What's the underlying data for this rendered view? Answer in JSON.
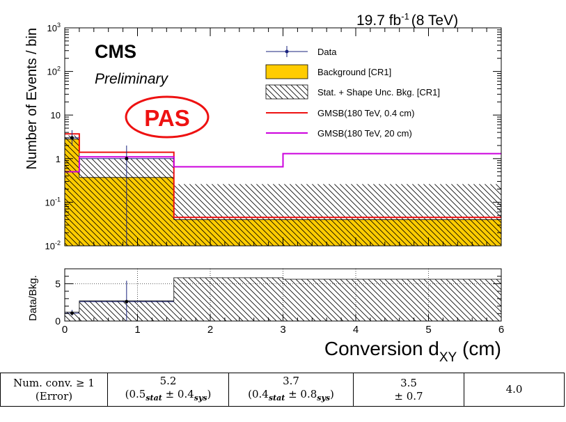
{
  "header": {
    "lumi": "19.7 fb",
    "lumi_exp": "-1",
    "energy": "(8 TeV)",
    "experiment": "CMS",
    "status": "Preliminary",
    "stamp": "PAS"
  },
  "chart_data": [
    {
      "type": "histogram",
      "yscale": "log",
      "ylabel": "Number of Events / bin",
      "xlim": [
        0,
        6
      ],
      "ylim": [
        0.01,
        1000
      ],
      "y_ticks": [
        "10^-2",
        "10^-1",
        "1",
        "10",
        "10^2",
        "10^3"
      ],
      "bin_edges": [
        0,
        0.2,
        1.5,
        3,
        6
      ],
      "legend_position": "top-right",
      "legend": [
        "Data",
        "Background [CR1]",
        "Stat. + Shape Unc. Bkg. [CR1]",
        "GMSB(180 TeV, 0.4 cm)",
        "GMSB(180 TeV, 20 cm)"
      ],
      "series": [
        {
          "name": "Background [CR1]",
          "style": "filled",
          "color": "#ffcc00",
          "values": [
            2.8,
            0.37,
            0.04,
            0.04
          ]
        },
        {
          "name": "Stat. + Shape Unc. Bkg. [CR1] (upper)",
          "style": "hatched",
          "values": [
            3.4,
            1.0,
            0.26,
            0.26
          ]
        },
        {
          "name": "GMSB(180 TeV, 0.4 cm)",
          "style": "line",
          "color": "#ee1111",
          "values": [
            3.7,
            1.4,
            0.045,
            0.045
          ]
        },
        {
          "name": "GMSB(180 TeV, 20 cm)",
          "style": "line",
          "color": "#cc00dd",
          "values": [
            0.5,
            1.1,
            0.65,
            1.3
          ]
        }
      ],
      "data_points": [
        {
          "x": 0.1,
          "y": 3.0,
          "xerr": 0.1,
          "y_low": 2.0,
          "y_high": 4.5
        },
        {
          "x": 0.85,
          "y": 1.0,
          "xerr": 0.65,
          "y_low": 0.01,
          "y_high": 2.0
        }
      ]
    },
    {
      "type": "ratio",
      "ylabel": "Data/Bkg.",
      "xlabel": "Conversion d",
      "xlabel_sub": "XY",
      "xlabel_unit": " (cm)",
      "xlim": [
        0,
        6
      ],
      "ylim": [
        0,
        7
      ],
      "x_ticks": [
        "0",
        "1",
        "2",
        "3",
        "4",
        "5",
        "6"
      ],
      "y_ticks": [
        "0",
        "5"
      ],
      "band_upper": [
        1.2,
        2.7,
        5.8,
        5.6
      ],
      "data_points": [
        {
          "x": 0.1,
          "y": 1.05,
          "xerr": 0.1,
          "y_low": 0.7,
          "y_high": 1.5
        },
        {
          "x": 0.85,
          "y": 2.6,
          "xerr": 0.65,
          "y_low": 0.0,
          "y_high": 5.4
        }
      ]
    }
  ],
  "table": {
    "row_header_1": "Num. conv. ≥ 1",
    "row_header_2": "(Error)",
    "col1_value": "5.2",
    "col1_err_a": "(0.5",
    "col1_err_stat": "stat",
    "col1_err_b": " ± 0.4",
    "col1_err_sys": "sys",
    "col1_err_c": ")",
    "col2_value": "3.7",
    "col2_err_a": "(0.4",
    "col2_err_stat": "stat",
    "col2_err_b": " ± 0.8",
    "col2_err_sys": "sys",
    "col2_err_c": ")",
    "col3_value": "3.5",
    "col3_err": "± 0.7",
    "col4_value": "4.0"
  }
}
